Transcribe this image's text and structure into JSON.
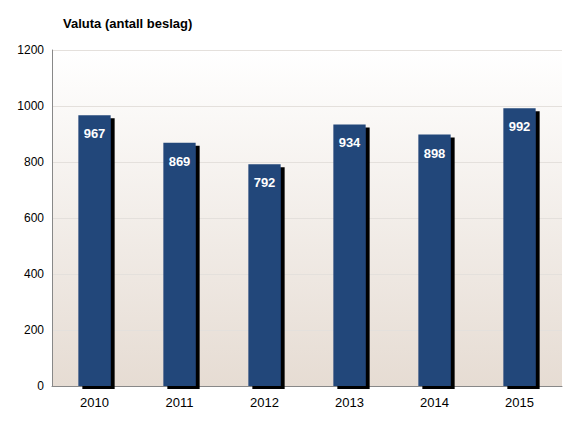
{
  "chart_data": {
    "type": "bar",
    "title": "Valuta (antall beslag)",
    "categories": [
      "2010",
      "2011",
      "2012",
      "2013",
      "2014",
      "2015"
    ],
    "values": [
      967,
      869,
      792,
      934,
      898,
      992
    ],
    "color": "#22467a",
    "ylim": [
      0,
      1200
    ],
    "yticks": [
      0,
      200,
      400,
      600,
      800,
      1000,
      1200
    ],
    "grid": true,
    "data_labels": true
  }
}
